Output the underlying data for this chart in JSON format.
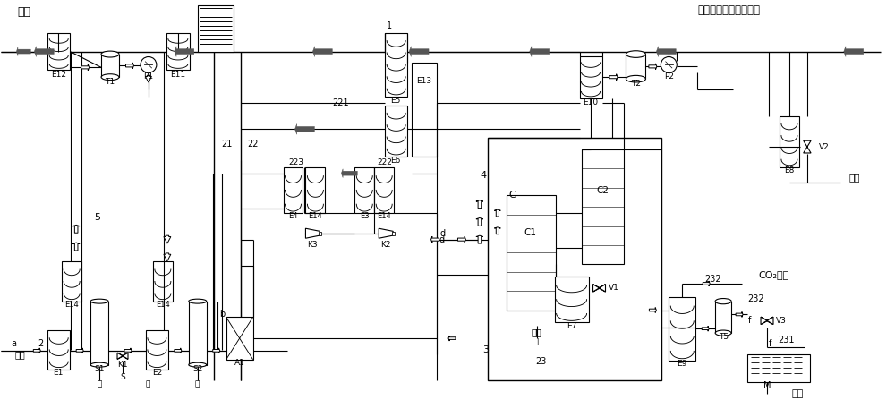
{
  "figsize": [
    10.0,
    4.47
  ],
  "dpi": 100,
  "bg": "#ffffff",
  "black": "#000000",
  "gray": "#666666",
  "darkgray": "#555555",
  "top_left_label": "气体",
  "top_right_label": "外界冷源（低温液体）",
  "tail_label": "尾气",
  "co2_label": "CO₂液体",
  "dry_ice_label": "干冰",
  "raw_label": "原料",
  "water_label": "水",
  "waste_label": "废气"
}
